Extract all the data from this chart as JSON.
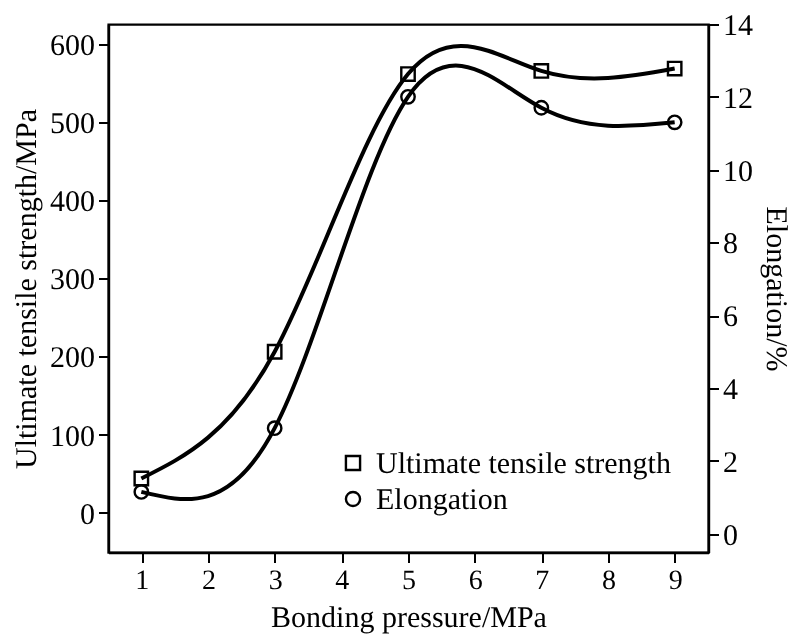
{
  "chart_data": {
    "type": "line",
    "xlabel": "Bonding pressure/MPa",
    "ylabel": "Ultimate tensile strength/MPa",
    "y2label": "Elongation/%",
    "x": [
      1,
      3,
      5,
      7,
      9
    ],
    "xlim": [
      0.5,
      9.5
    ],
    "xticks": [
      1,
      2,
      3,
      4,
      5,
      6,
      7,
      8,
      9
    ],
    "ylim": [
      -50,
      625
    ],
    "yticks": [
      0,
      100,
      200,
      300,
      400,
      500,
      600
    ],
    "y2lim": [
      -0.5,
      14
    ],
    "y2ticks": [
      0,
      2,
      4,
      6,
      8,
      10,
      12,
      14
    ],
    "series": [
      {
        "name": "Ultimate tensile strength",
        "color": "#000000",
        "marker": "square",
        "values": [
          44,
          206,
          561,
          565,
          568
        ]
      },
      {
        "name": "Elongation",
        "color": "#000000",
        "marker": "circle",
        "axis": "y2",
        "values": [
          1.15,
          2.9,
          12.0,
          11.7,
          11.3
        ]
      }
    ],
    "legend": "bottom right",
    "grid": false
  }
}
